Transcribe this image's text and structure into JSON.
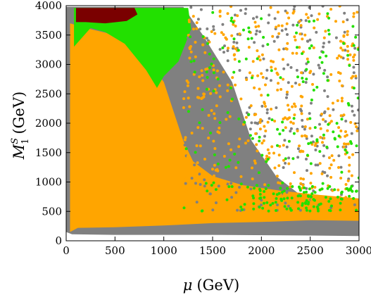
{
  "chart_data": {
    "type": "scatter",
    "xlabel_symbol": "μ",
    "xlabel_unit": "(GeV)",
    "ylabel_symbol": "M",
    "ylabel_sup": "S",
    "ylabel_sub": "1",
    "ylabel_unit": "(GeV)",
    "xlim": [
      0,
      3000
    ],
    "ylim": [
      0,
      4000
    ],
    "x_ticks": [
      0,
      500,
      1000,
      1500,
      2000,
      2500,
      3000
    ],
    "y_ticks": [
      0,
      500,
      1000,
      1500,
      2000,
      2500,
      3000,
      3500,
      4000
    ],
    "grid": false,
    "legend": "none",
    "colors": {
      "gray": "#808080",
      "orange": "#ffa500",
      "green": "#22e000",
      "darkred": "#7a0000"
    },
    "regions": [
      {
        "color": "gray",
        "polygon": [
          [
            0,
            150
          ],
          [
            0,
            3980
          ],
          [
            1200,
            3980
          ],
          [
            1400,
            3500
          ],
          [
            1700,
            2700
          ],
          [
            1900,
            1700
          ],
          [
            2150,
            1100
          ],
          [
            2500,
            650
          ],
          [
            3000,
            450
          ],
          [
            3000,
            80
          ],
          [
            2500,
            90
          ],
          [
            1500,
            100
          ],
          [
            500,
            100
          ],
          [
            60,
            110
          ]
        ]
      },
      {
        "color": "orange",
        "polygon": [
          [
            40,
            150
          ],
          [
            40,
            3700
          ],
          [
            250,
            3600
          ],
          [
            500,
            3500
          ],
          [
            800,
            3150
          ],
          [
            1000,
            2700
          ],
          [
            1100,
            2200
          ],
          [
            1200,
            1700
          ],
          [
            1300,
            1350
          ],
          [
            1500,
            1100
          ],
          [
            1800,
            950
          ],
          [
            2200,
            850
          ],
          [
            2600,
            780
          ],
          [
            3000,
            720
          ],
          [
            3000,
            340
          ],
          [
            2500,
            350
          ],
          [
            2000,
            320
          ],
          [
            1500,
            300
          ],
          [
            1000,
            260
          ],
          [
            500,
            230
          ],
          [
            120,
            220
          ]
        ]
      },
      {
        "color": "green",
        "polygon": [
          [
            80,
            3300
          ],
          [
            80,
            3960
          ],
          [
            1250,
            3960
          ],
          [
            1280,
            3600
          ],
          [
            1150,
            3050
          ],
          [
            1000,
            2800
          ],
          [
            930,
            2600
          ],
          [
            820,
            2900
          ],
          [
            600,
            3350
          ],
          [
            400,
            3550
          ],
          [
            250,
            3620
          ]
        ]
      },
      {
        "color": "darkred",
        "polygon": [
          [
            100,
            3720
          ],
          [
            100,
            3960
          ],
          [
            700,
            3960
          ],
          [
            730,
            3850
          ],
          [
            620,
            3740
          ],
          [
            400,
            3700
          ],
          [
            200,
            3720
          ]
        ]
      }
    ],
    "scatter_series": [
      {
        "color": "gray",
        "count": 260,
        "x_range": [
          1200,
          3000
        ],
        "y_range": [
          500,
          4000
        ]
      },
      {
        "color": "orange",
        "count": 420,
        "x_range": [
          1200,
          3000
        ],
        "y_range": [
          700,
          4000
        ]
      },
      {
        "color": "green",
        "count": 180,
        "x_range": [
          1200,
          3000
        ],
        "y_range": [
          500,
          3900
        ]
      },
      {
        "color": "green",
        "count": 90,
        "x_range": [
          1900,
          3000
        ],
        "y_range": [
          500,
          950
        ]
      }
    ]
  }
}
